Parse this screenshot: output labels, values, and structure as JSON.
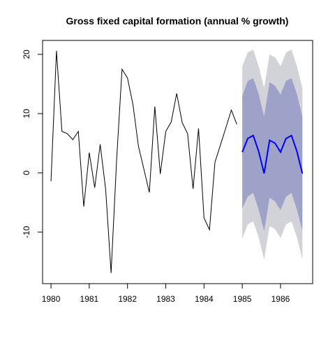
{
  "chart_data": {
    "type": "forecast",
    "title": "Gross fixed capital formation (annual % growth)",
    "x": [
      1980,
      1980.143,
      1980.286,
      1980.429,
      1980.571,
      1980.714,
      1980.857,
      1981,
      1981.143,
      1981.286,
      1981.429,
      1981.571,
      1981.714,
      1981.857,
      1982,
      1982.143,
      1982.286,
      1982.429,
      1982.571,
      1982.714,
      1982.857,
      1983,
      1983.143,
      1983.286,
      1983.429,
      1983.571,
      1983.714,
      1983.857,
      1984,
      1984.143,
      1984.286,
      1984.429,
      1984.571,
      1984.714,
      1984.857
    ],
    "values": [
      -1.4,
      20.6,
      7.0,
      6.6,
      5.6,
      7.0,
      -5.7,
      3.4,
      -2.5,
      4.8,
      -2.8,
      -16.9,
      2.0,
      17.5,
      16.0,
      11.5,
      4.5,
      0.6,
      -3.3,
      11.2,
      -0.2,
      7.0,
      8.6,
      13.4,
      8.5,
      6.6,
      -2.7,
      7.5,
      -7.6,
      -9.6,
      1.8,
      4.7,
      7.6,
      10.6,
      8.2
    ],
    "color": "#000000",
    "forecast": {
      "x": [
        1985,
        1985.143,
        1985.286,
        1985.429,
        1985.571,
        1985.714,
        1985.857,
        1986,
        1986.143,
        1986.286,
        1986.429,
        1986.571
      ],
      "mean": [
        3.5,
        5.8,
        6.3,
        3.6,
        -0.1,
        5.5,
        5.0,
        3.5,
        5.8,
        6.3,
        3.6,
        -0.1
      ],
      "lo80": [
        -6.0,
        -4.0,
        -3.4,
        -6.2,
        -9.8,
        -4.2,
        -4.8,
        -6.3,
        -4.0,
        -3.4,
        -6.2,
        -9.8
      ],
      "hi80": [
        13.0,
        15.5,
        16.0,
        13.3,
        9.5,
        15.3,
        14.7,
        13.2,
        15.5,
        16.0,
        13.3,
        9.5
      ],
      "lo95": [
        -11.0,
        -8.7,
        -8.2,
        -10.9,
        -14.6,
        -9.0,
        -9.5,
        -11.0,
        -8.7,
        -8.2,
        -10.9,
        -14.6
      ],
      "hi95": [
        18.0,
        20.3,
        20.8,
        18.0,
        14.3,
        20.0,
        19.5,
        18.0,
        20.3,
        20.8,
        18.0,
        14.3
      ],
      "color": "#0000ff",
      "color80": "#9ea2c9",
      "color95": "#d2d2d9"
    },
    "xlim": [
      1979.78,
      1986.84
    ],
    "ylim": [
      -18.7,
      22.35
    ],
    "xticks": [
      1980,
      1981,
      1982,
      1983,
      1984,
      1985,
      1986
    ],
    "yticks": [
      -10,
      0,
      10,
      20
    ]
  }
}
